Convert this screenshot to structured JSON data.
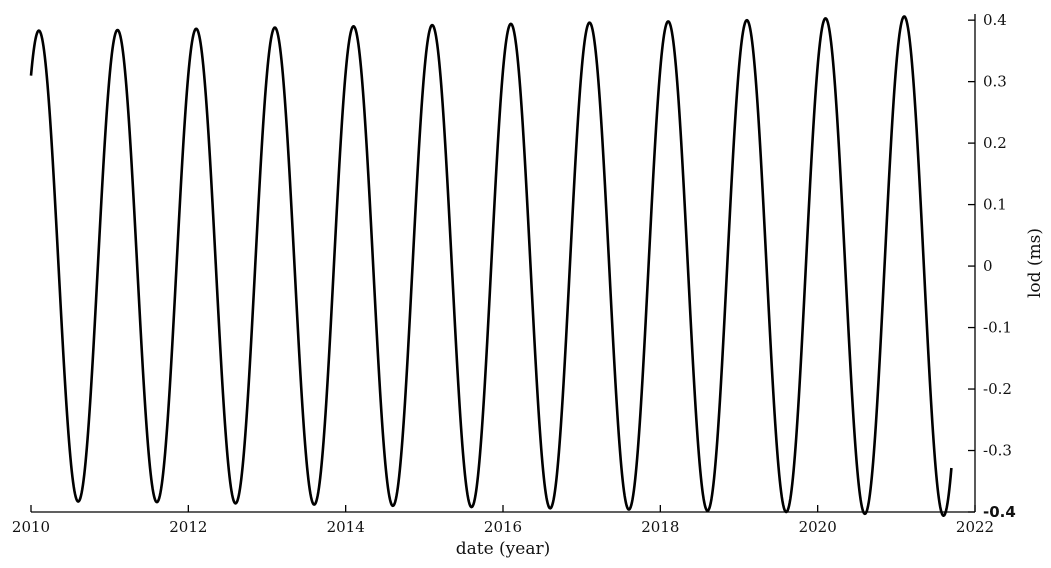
{
  "chart_data": {
    "type": "line",
    "title": "",
    "xlabel": "date (year)",
    "ylabel": "lod (ms)",
    "xlim": [
      2010,
      2022
    ],
    "ylim": [
      -0.4,
      0.41
    ],
    "y_axis_side": "right",
    "grid": false,
    "legend": "none",
    "x_ticks": [
      "2010",
      "2012",
      "2014",
      "2016",
      "2018",
      "2020",
      "2022"
    ],
    "x_tick_values": [
      2010,
      2012,
      2014,
      2016,
      2018,
      2020,
      2022
    ],
    "y_ticks": [
      "0.4",
      "0.3",
      "0.2",
      "0.1",
      "0",
      "-0.1",
      "-0.2",
      "-0.3",
      "-0.4"
    ],
    "y_tick_values": [
      0.4,
      0.3,
      0.2,
      0.1,
      0,
      -0.1,
      -0.2,
      -0.3,
      -0.4
    ],
    "series": [
      {
        "color": "#000000",
        "x": [
          2010.0,
          2010.1,
          2010.6,
          2011.1,
          2011.6,
          2012.1,
          2012.6,
          2013.1,
          2013.6,
          2014.1,
          2014.6,
          2015.1,
          2015.6,
          2016.1,
          2016.6,
          2017.1,
          2017.6,
          2018.1,
          2018.6,
          2019.1,
          2019.6,
          2020.1,
          2020.6,
          2021.1,
          2021.6,
          2021.7
        ],
        "y": [
          0.324,
          0.383,
          -0.383,
          0.384,
          -0.384,
          0.386,
          -0.386,
          0.388,
          -0.388,
          0.39,
          -0.39,
          0.392,
          -0.392,
          0.394,
          -0.394,
          0.396,
          -0.396,
          0.398,
          -0.398,
          0.4,
          -0.4,
          0.403,
          -0.403,
          0.406,
          -0.406,
          -0.355
        ],
        "period_years": 1.0
      }
    ]
  }
}
